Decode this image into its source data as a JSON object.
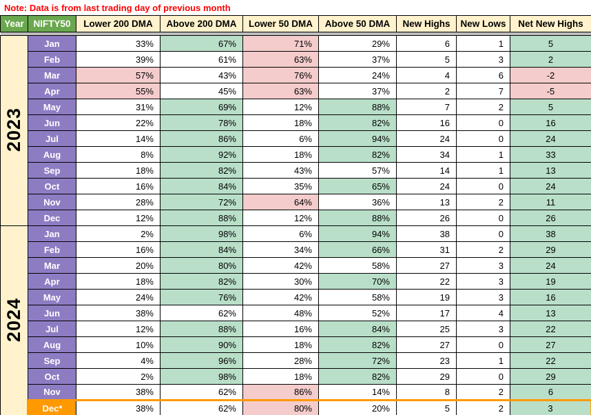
{
  "note": "Note: Data is from last trading day of previous month",
  "colors": {
    "header_green": "#6aa84f",
    "header_cream": "#fff2cc",
    "month_purple": "#8e7cc3",
    "cell_green": "#b9dfc9",
    "cell_pink": "#f4cccc",
    "dec_orange": "#ff9900",
    "note_red": "#ff0000",
    "divider_gray": "#bdbdbd"
  },
  "table": {
    "headers": [
      "Year",
      "NIFTY50",
      "Lower 200 DMA",
      "Above 200 DMA",
      "Lower 50 DMA",
      "Above 50 DMA",
      "New Highs",
      "New Lows",
      "Net New Highs"
    ],
    "year_groups": [
      {
        "year": "2023",
        "rows": [
          {
            "month": "Jan",
            "cells": [
              [
                "33%",
                "w"
              ],
              [
                "67%",
                "g"
              ],
              [
                "71%",
                "p"
              ],
              [
                "29%",
                "w"
              ],
              [
                "6",
                "w"
              ],
              [
                "1",
                "w"
              ],
              [
                "5",
                "g"
              ]
            ]
          },
          {
            "month": "Feb",
            "cells": [
              [
                "39%",
                "w"
              ],
              [
                "61%",
                "w"
              ],
              [
                "63%",
                "p"
              ],
              [
                "37%",
                "w"
              ],
              [
                "5",
                "w"
              ],
              [
                "3",
                "w"
              ],
              [
                "2",
                "g"
              ]
            ]
          },
          {
            "month": "Mar",
            "cells": [
              [
                "57%",
                "p"
              ],
              [
                "43%",
                "w"
              ],
              [
                "76%",
                "p"
              ],
              [
                "24%",
                "w"
              ],
              [
                "4",
                "w"
              ],
              [
                "6",
                "w"
              ],
              [
                "-2",
                "p"
              ]
            ]
          },
          {
            "month": "Apr",
            "cells": [
              [
                "55%",
                "p"
              ],
              [
                "45%",
                "w"
              ],
              [
                "63%",
                "p"
              ],
              [
                "37%",
                "w"
              ],
              [
                "2",
                "w"
              ],
              [
                "7",
                "w"
              ],
              [
                "-5",
                "p"
              ]
            ]
          },
          {
            "month": "May",
            "cells": [
              [
                "31%",
                "w"
              ],
              [
                "69%",
                "g"
              ],
              [
                "12%",
                "w"
              ],
              [
                "88%",
                "g"
              ],
              [
                "7",
                "w"
              ],
              [
                "2",
                "w"
              ],
              [
                "5",
                "g"
              ]
            ]
          },
          {
            "month": "Jun",
            "cells": [
              [
                "22%",
                "w"
              ],
              [
                "78%",
                "g"
              ],
              [
                "18%",
                "w"
              ],
              [
                "82%",
                "g"
              ],
              [
                "16",
                "w"
              ],
              [
                "0",
                "w"
              ],
              [
                "16",
                "g"
              ]
            ]
          },
          {
            "month": "Jul",
            "cells": [
              [
                "14%",
                "w"
              ],
              [
                "86%",
                "g"
              ],
              [
                "6%",
                "w"
              ],
              [
                "94%",
                "g"
              ],
              [
                "24",
                "w"
              ],
              [
                "0",
                "w"
              ],
              [
                "24",
                "g"
              ]
            ]
          },
          {
            "month": "Aug",
            "cells": [
              [
                "8%",
                "w"
              ],
              [
                "92%",
                "g"
              ],
              [
                "18%",
                "w"
              ],
              [
                "82%",
                "g"
              ],
              [
                "34",
                "w"
              ],
              [
                "1",
                "w"
              ],
              [
                "33",
                "g"
              ]
            ]
          },
          {
            "month": "Sep",
            "cells": [
              [
                "18%",
                "w"
              ],
              [
                "82%",
                "g"
              ],
              [
                "43%",
                "w"
              ],
              [
                "57%",
                "w"
              ],
              [
                "14",
                "w"
              ],
              [
                "1",
                "w"
              ],
              [
                "13",
                "g"
              ]
            ]
          },
          {
            "month": "Oct",
            "cells": [
              [
                "16%",
                "w"
              ],
              [
                "84%",
                "g"
              ],
              [
                "35%",
                "w"
              ],
              [
                "65%",
                "g"
              ],
              [
                "24",
                "w"
              ],
              [
                "0",
                "w"
              ],
              [
                "24",
                "g"
              ]
            ]
          },
          {
            "month": "Nov",
            "cells": [
              [
                "28%",
                "w"
              ],
              [
                "72%",
                "g"
              ],
              [
                "64%",
                "p"
              ],
              [
                "36%",
                "w"
              ],
              [
                "13",
                "w"
              ],
              [
                "2",
                "w"
              ],
              [
                "11",
                "g"
              ]
            ]
          },
          {
            "month": "Dec",
            "cells": [
              [
                "12%",
                "w"
              ],
              [
                "88%",
                "g"
              ],
              [
                "12%",
                "w"
              ],
              [
                "88%",
                "g"
              ],
              [
                "26",
                "w"
              ],
              [
                "0",
                "w"
              ],
              [
                "26",
                "g"
              ]
            ]
          }
        ]
      },
      {
        "year": "2024",
        "rows": [
          {
            "month": "Jan",
            "cells": [
              [
                "2%",
                "w"
              ],
              [
                "98%",
                "g"
              ],
              [
                "6%",
                "w"
              ],
              [
                "94%",
                "g"
              ],
              [
                "38",
                "w"
              ],
              [
                "0",
                "w"
              ],
              [
                "38",
                "g"
              ]
            ]
          },
          {
            "month": "Feb",
            "cells": [
              [
                "16%",
                "w"
              ],
              [
                "84%",
                "g"
              ],
              [
                "34%",
                "w"
              ],
              [
                "66%",
                "g"
              ],
              [
                "31",
                "w"
              ],
              [
                "2",
                "w"
              ],
              [
                "29",
                "g"
              ]
            ]
          },
          {
            "month": "Mar",
            "cells": [
              [
                "20%",
                "w"
              ],
              [
                "80%",
                "g"
              ],
              [
                "42%",
                "w"
              ],
              [
                "58%",
                "w"
              ],
              [
                "27",
                "w"
              ],
              [
                "3",
                "w"
              ],
              [
                "24",
                "g"
              ]
            ]
          },
          {
            "month": "Apr",
            "cells": [
              [
                "18%",
                "w"
              ],
              [
                "82%",
                "g"
              ],
              [
                "30%",
                "w"
              ],
              [
                "70%",
                "g"
              ],
              [
                "22",
                "w"
              ],
              [
                "3",
                "w"
              ],
              [
                "19",
                "g"
              ]
            ]
          },
          {
            "month": "May",
            "cells": [
              [
                "24%",
                "w"
              ],
              [
                "76%",
                "g"
              ],
              [
                "42%",
                "w"
              ],
              [
                "58%",
                "w"
              ],
              [
                "19",
                "w"
              ],
              [
                "3",
                "w"
              ],
              [
                "16",
                "g"
              ]
            ]
          },
          {
            "month": "Jun",
            "cells": [
              [
                "38%",
                "w"
              ],
              [
                "62%",
                "w"
              ],
              [
                "48%",
                "w"
              ],
              [
                "52%",
                "w"
              ],
              [
                "17",
                "w"
              ],
              [
                "4",
                "w"
              ],
              [
                "13",
                "g"
              ]
            ]
          },
          {
            "month": "Jul",
            "cells": [
              [
                "12%",
                "w"
              ],
              [
                "88%",
                "g"
              ],
              [
                "16%",
                "w"
              ],
              [
                "84%",
                "g"
              ],
              [
                "25",
                "w"
              ],
              [
                "3",
                "w"
              ],
              [
                "22",
                "g"
              ]
            ]
          },
          {
            "month": "Aug",
            "cells": [
              [
                "10%",
                "w"
              ],
              [
                "90%",
                "g"
              ],
              [
                "18%",
                "w"
              ],
              [
                "82%",
                "g"
              ],
              [
                "27",
                "w"
              ],
              [
                "0",
                "w"
              ],
              [
                "27",
                "g"
              ]
            ]
          },
          {
            "month": "Sep",
            "cells": [
              [
                "4%",
                "w"
              ],
              [
                "96%",
                "g"
              ],
              [
                "28%",
                "w"
              ],
              [
                "72%",
                "g"
              ],
              [
                "23",
                "w"
              ],
              [
                "1",
                "w"
              ],
              [
                "22",
                "g"
              ]
            ]
          },
          {
            "month": "Oct",
            "cells": [
              [
                "2%",
                "w"
              ],
              [
                "98%",
                "g"
              ],
              [
                "18%",
                "w"
              ],
              [
                "82%",
                "g"
              ],
              [
                "29",
                "w"
              ],
              [
                "0",
                "w"
              ],
              [
                "29",
                "g"
              ]
            ]
          },
          {
            "month": "Nov",
            "cells": [
              [
                "38%",
                "w"
              ],
              [
                "62%",
                "w"
              ],
              [
                "86%",
                "p"
              ],
              [
                "14%",
                "w"
              ],
              [
                "8",
                "w"
              ],
              [
                "2",
                "w"
              ],
              [
                "6",
                "g"
              ]
            ]
          },
          {
            "month": "Dec*",
            "month_style": "orange",
            "row_highlight": true,
            "cells": [
              [
                "38%",
                "w"
              ],
              [
                "62%",
                "w"
              ],
              [
                "80%",
                "p"
              ],
              [
                "20%",
                "w"
              ],
              [
                "5",
                "w"
              ],
              [
                "2",
                "w"
              ],
              [
                "3",
                "g"
              ]
            ]
          }
        ]
      }
    ]
  }
}
